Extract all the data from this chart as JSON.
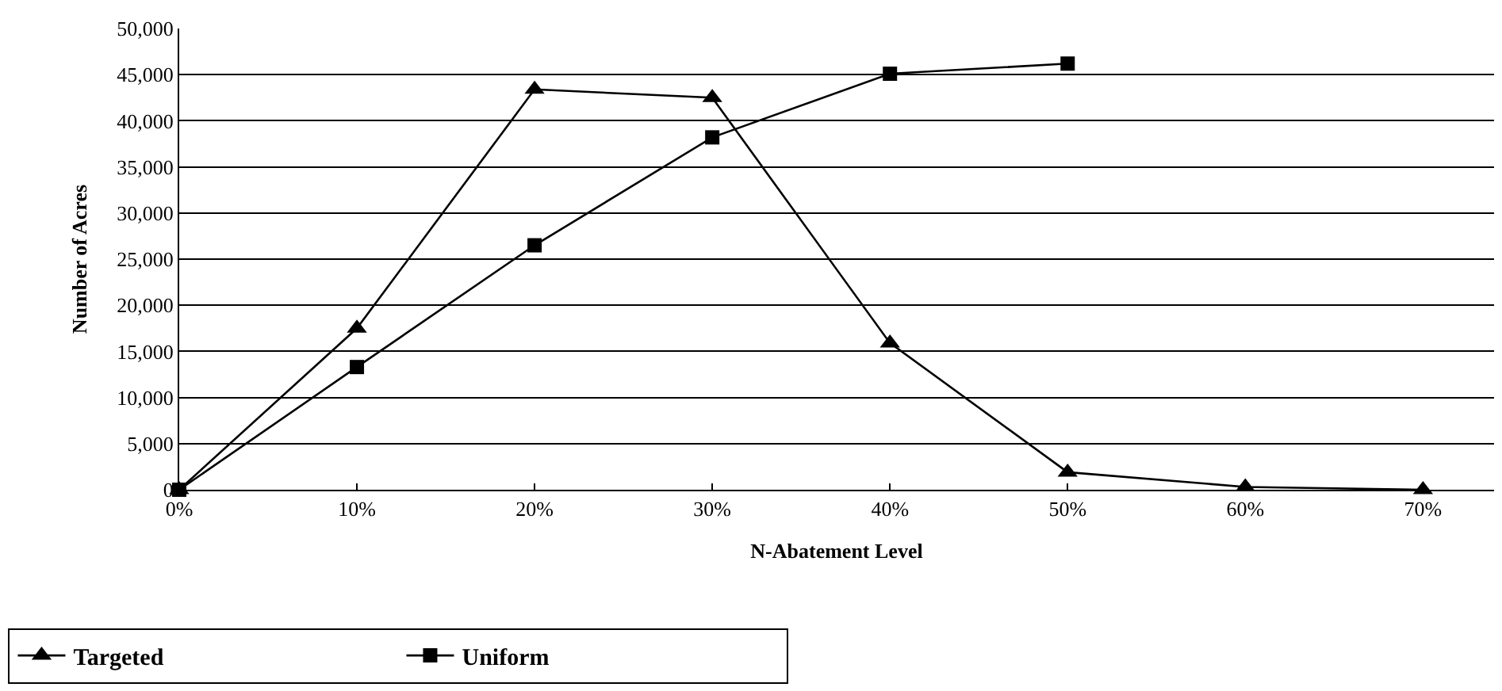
{
  "chart_data": {
    "type": "line",
    "xlabel": "N-Abatement Level",
    "ylabel": "Number of Acres",
    "x": [
      0,
      10,
      20,
      30,
      40,
      50,
      60,
      70
    ],
    "series": [
      {
        "name": "Targeted",
        "color": "#000000",
        "marker": "triangle",
        "values": [
          0,
          17500,
          43400,
          42500,
          15900,
          1900,
          300,
          0
        ]
      },
      {
        "name": "Uniform",
        "color": "#000000",
        "marker": "square",
        "values": [
          0,
          13300,
          26500,
          38200,
          45100,
          46200,
          null,
          null
        ]
      }
    ],
    "xlim": [
      0,
      74
    ],
    "xticks": [
      {
        "value": 0,
        "label": "0%"
      },
      {
        "value": 10,
        "label": "10%"
      },
      {
        "value": 20,
        "label": "20%"
      },
      {
        "value": 30,
        "label": "30%"
      },
      {
        "value": 40,
        "label": "40%"
      },
      {
        "value": 50,
        "label": "50%"
      },
      {
        "value": 60,
        "label": "60%"
      },
      {
        "value": 70,
        "label": "70%"
      }
    ],
    "ylim": [
      0,
      50000
    ],
    "yticks": [
      {
        "value": 0,
        "label": "0"
      },
      {
        "value": 5000,
        "label": "5,000"
      },
      {
        "value": 10000,
        "label": "10,000"
      },
      {
        "value": 15000,
        "label": "15,000"
      },
      {
        "value": 20000,
        "label": "20,000"
      },
      {
        "value": 25000,
        "label": "25,000"
      },
      {
        "value": 30000,
        "label": "30,000"
      },
      {
        "value": 35000,
        "label": "35,000"
      },
      {
        "value": 40000,
        "label": "40,000"
      },
      {
        "value": 45000,
        "label": "45,000"
      },
      {
        "value": 50000,
        "label": "50,000"
      }
    ],
    "grid": "y",
    "legend": "bottom left",
    "line_style": "solid"
  }
}
